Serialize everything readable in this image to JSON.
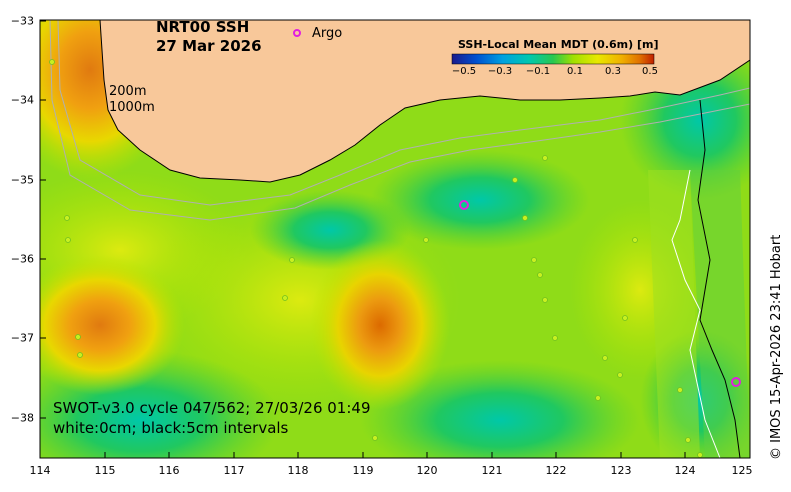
{
  "header": {
    "title_line1": "NRT00 SSH",
    "title_line2": "27 Mar 2026"
  },
  "legend": {
    "argo_label": "Argo",
    "argo_color": "#e020e0"
  },
  "colorbar": {
    "title": "SSH-Local Mean MDT (0.6m) [m]",
    "ticks": [
      "−0.5",
      "−0.3",
      "−0.1",
      "0.1",
      "0.3",
      "0.5"
    ],
    "colors": [
      "#1a1a8c",
      "#0050d0",
      "#00a0e0",
      "#00c8b0",
      "#28c850",
      "#a0e000",
      "#e8e800",
      "#f0b000",
      "#e07000",
      "#c02000"
    ]
  },
  "isobaths": {
    "label_200": "200m",
    "label_1000": "1000m"
  },
  "swot": {
    "line1": "SWOT-v3.0 cycle 047/562; 27/03/26 01:49",
    "line2": "white:0cm; black:5cm intervals"
  },
  "credit": "© IMOS 15-Apr-2026 23:41 Hobart",
  "axes": {
    "latitude_labels": [
      "−33",
      "−34",
      "−35",
      "−36",
      "−37",
      "−38"
    ],
    "longitude_labels": [
      "114",
      "115",
      "116",
      "117",
      "118",
      "119",
      "120",
      "121",
      "122",
      "123",
      "124",
      "125"
    ]
  },
  "colors": {
    "land": "#f8c89a",
    "field_base": "#8fdc18",
    "argo": "#e020e0"
  }
}
